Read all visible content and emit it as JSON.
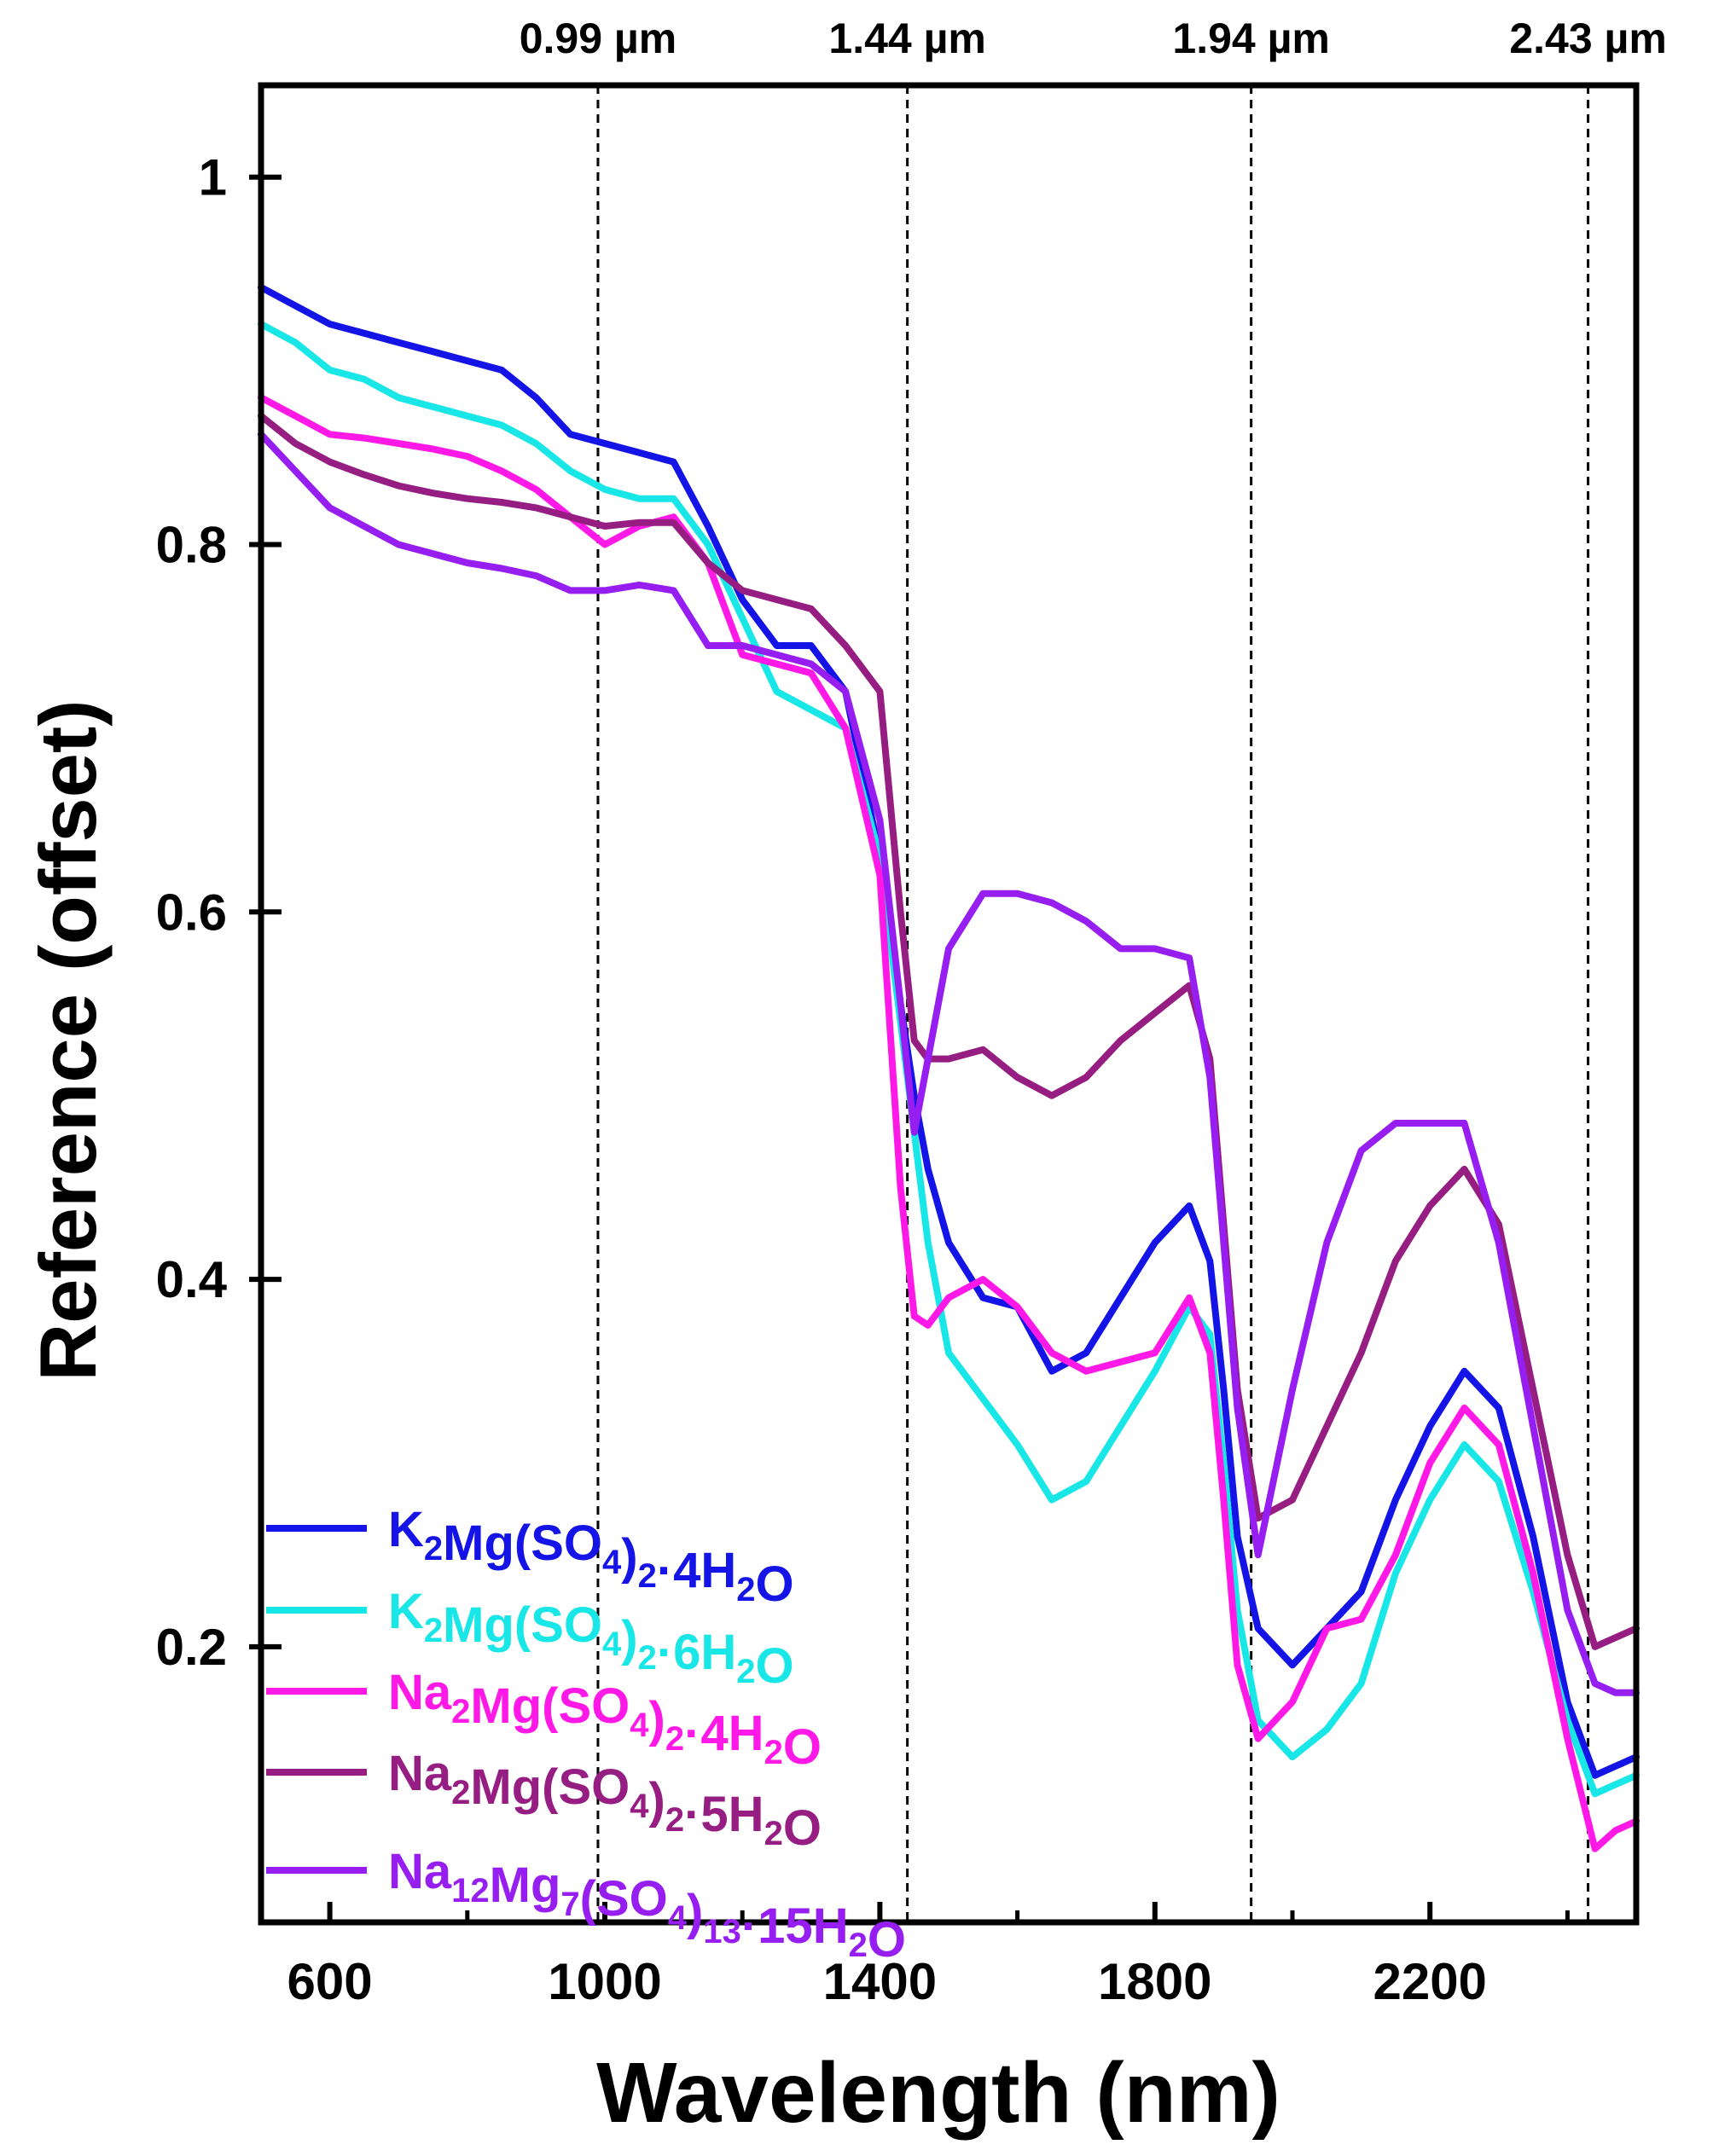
{
  "chart_data": {
    "type": "line",
    "title": "",
    "xlabel": "Wavelength (nm)",
    "ylabel": "Reference (offset)",
    "xlim": [
      500,
      2500
    ],
    "ylim": [
      0.05,
      1.05
    ],
    "xticks": [
      600,
      1000,
      1400,
      1800,
      2200
    ],
    "xtick_labels": [
      "600",
      "1000",
      "1400",
      "1800",
      "2200"
    ],
    "xminor": [
      800,
      1200,
      1600,
      2000,
      2400
    ],
    "yticks": [
      0.2,
      0.4,
      0.6,
      0.8,
      1.0
    ],
    "ytick_labels": [
      "0.2",
      "0.4",
      "0.6",
      "0.8",
      "1"
    ],
    "grid": false,
    "legend_position": "bottom-left",
    "annotations": [
      {
        "x": 990,
        "label": "0.99 µm"
      },
      {
        "x": 1440,
        "label": "1.44 µm"
      },
      {
        "x": 1940,
        "label": "1.94 µm"
      },
      {
        "x": 2430,
        "label": "2.43 µm"
      }
    ],
    "x": [
      500,
      550,
      600,
      650,
      700,
      750,
      800,
      850,
      900,
      950,
      1000,
      1050,
      1100,
      1150,
      1200,
      1250,
      1300,
      1350,
      1400,
      1430,
      1450,
      1470,
      1500,
      1550,
      1600,
      1650,
      1700,
      1750,
      1800,
      1850,
      1880,
      1900,
      1920,
      1950,
      2000,
      2050,
      2100,
      2150,
      2200,
      2250,
      2300,
      2350,
      2400,
      2440,
      2470,
      2500
    ],
    "series": [
      {
        "name_parts": [
          [
            "K",
            ""
          ],
          [
            "2",
            "sub"
          ],
          [
            "Mg(SO",
            ""
          ],
          [
            "4",
            "sub"
          ],
          [
            ")",
            ""
          ],
          [
            "2",
            "sub"
          ],
          [
            "·4H",
            ""
          ],
          [
            "2",
            "sub"
          ],
          [
            "O",
            ""
          ]
        ],
        "color": "#1414e6",
        "values": [
          0.94,
          0.93,
          0.92,
          0.915,
          0.91,
          0.905,
          0.9,
          0.895,
          0.88,
          0.86,
          0.855,
          0.85,
          0.845,
          0.81,
          0.77,
          0.745,
          0.745,
          0.72,
          0.63,
          0.55,
          0.5,
          0.46,
          0.42,
          0.39,
          0.385,
          0.35,
          0.36,
          0.39,
          0.42,
          0.44,
          0.41,
          0.34,
          0.26,
          0.21,
          0.19,
          0.21,
          0.23,
          0.28,
          0.32,
          0.35,
          0.33,
          0.26,
          0.17,
          0.13,
          0.135,
          0.14
        ]
      },
      {
        "name_parts": [
          [
            "K",
            ""
          ],
          [
            "2",
            "sub"
          ],
          [
            "Mg(SO",
            ""
          ],
          [
            "4",
            "sub"
          ],
          [
            ")",
            ""
          ],
          [
            "2",
            "sub"
          ],
          [
            "·6H",
            ""
          ],
          [
            "2",
            "sub"
          ],
          [
            "O",
            ""
          ]
        ],
        "color": "#19e6e6",
        "values": [
          0.92,
          0.91,
          0.895,
          0.89,
          0.88,
          0.875,
          0.87,
          0.865,
          0.855,
          0.84,
          0.83,
          0.825,
          0.825,
          0.8,
          0.76,
          0.72,
          0.71,
          0.7,
          0.63,
          0.54,
          0.48,
          0.42,
          0.36,
          0.335,
          0.31,
          0.28,
          0.29,
          0.32,
          0.35,
          0.385,
          0.37,
          0.3,
          0.22,
          0.16,
          0.14,
          0.155,
          0.18,
          0.24,
          0.28,
          0.31,
          0.29,
          0.23,
          0.16,
          0.12,
          0.125,
          0.13
        ]
      },
      {
        "name_parts": [
          [
            "Na",
            ""
          ],
          [
            "2",
            "sub"
          ],
          [
            "Mg(SO",
            ""
          ],
          [
            "4",
            "sub"
          ],
          [
            ")",
            ""
          ],
          [
            "2",
            "sub"
          ],
          [
            "·4H",
            ""
          ],
          [
            "2",
            "sub"
          ],
          [
            "O",
            ""
          ]
        ],
        "color": "#ff19e6",
        "values": [
          0.88,
          0.87,
          0.86,
          0.858,
          0.855,
          0.852,
          0.848,
          0.84,
          0.83,
          0.815,
          0.8,
          0.81,
          0.815,
          0.79,
          0.74,
          0.735,
          0.73,
          0.7,
          0.62,
          0.45,
          0.38,
          0.375,
          0.39,
          0.4,
          0.385,
          0.36,
          0.35,
          0.355,
          0.36,
          0.39,
          0.36,
          0.28,
          0.19,
          0.15,
          0.17,
          0.21,
          0.215,
          0.25,
          0.3,
          0.33,
          0.31,
          0.24,
          0.15,
          0.09,
          0.1,
          0.105
        ]
      },
      {
        "name_parts": [
          [
            "Na",
            ""
          ],
          [
            "2",
            "sub"
          ],
          [
            "Mg(SO",
            ""
          ],
          [
            "4",
            "sub"
          ],
          [
            ")",
            ""
          ],
          [
            "2",
            "sub"
          ],
          [
            "·5H",
            ""
          ],
          [
            "2",
            "sub"
          ],
          [
            "O",
            ""
          ]
        ],
        "color": "#961e82",
        "values": [
          0.87,
          0.855,
          0.845,
          0.838,
          0.832,
          0.828,
          0.825,
          0.823,
          0.82,
          0.815,
          0.81,
          0.812,
          0.812,
          0.79,
          0.775,
          0.77,
          0.765,
          0.745,
          0.72,
          0.6,
          0.53,
          0.52,
          0.52,
          0.525,
          0.51,
          0.5,
          0.51,
          0.53,
          0.545,
          0.56,
          0.52,
          0.43,
          0.34,
          0.27,
          0.28,
          0.32,
          0.36,
          0.41,
          0.44,
          0.46,
          0.43,
          0.34,
          0.25,
          0.2,
          0.205,
          0.21
        ]
      },
      {
        "name_parts": [
          [
            "Na",
            ""
          ],
          [
            "12",
            "sub"
          ],
          [
            "Mg",
            ""
          ],
          [
            "7",
            "sub"
          ],
          [
            "(SO",
            ""
          ],
          [
            "4",
            "sub"
          ],
          [
            ")",
            ""
          ],
          [
            "13",
            "sub"
          ],
          [
            "·15H",
            ""
          ],
          [
            "2",
            "sub"
          ],
          [
            "O",
            ""
          ]
        ],
        "color": "#961ef0",
        "values": [
          0.86,
          0.84,
          0.82,
          0.81,
          0.8,
          0.795,
          0.79,
          0.787,
          0.783,
          0.775,
          0.775,
          0.778,
          0.775,
          0.745,
          0.745,
          0.74,
          0.735,
          0.72,
          0.65,
          0.55,
          0.48,
          0.52,
          0.58,
          0.61,
          0.61,
          0.605,
          0.595,
          0.58,
          0.58,
          0.575,
          0.51,
          0.42,
          0.33,
          0.25,
          0.34,
          0.42,
          0.47,
          0.485,
          0.485,
          0.485,
          0.42,
          0.32,
          0.22,
          0.18,
          0.175,
          0.175
        ]
      }
    ]
  }
}
